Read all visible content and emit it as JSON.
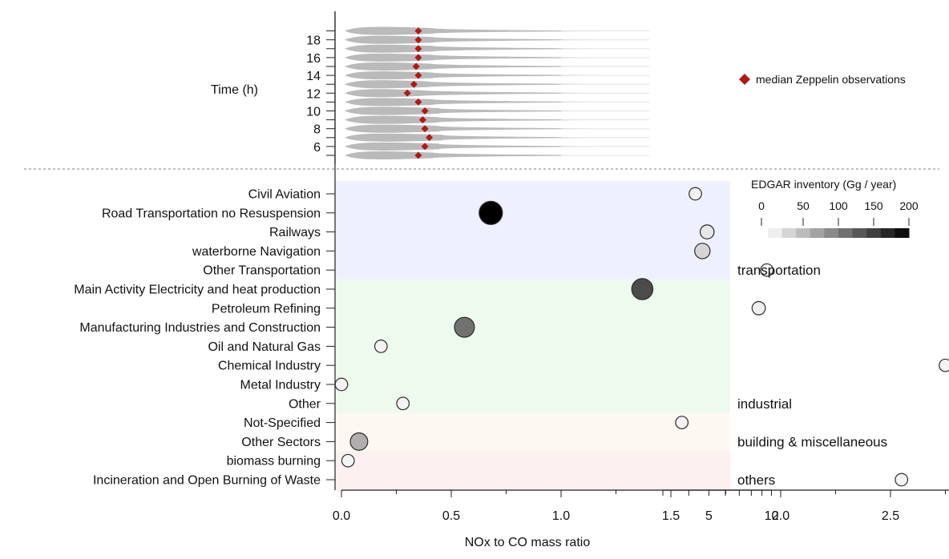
{
  "chart_data": {
    "type": "scatter",
    "xlabel": "NOx to CO mass ratio",
    "x_ticks_linear": [
      "0.0",
      "0.5",
      "1.0",
      "1.5",
      "2.0",
      "2.5"
    ],
    "x_ticks_log": [
      "5",
      "10"
    ],
    "x_scale": "linear 0-2.8, then log 3-10",
    "colorbar": {
      "title": "EDGAR inventory (Gg / year)",
      "ticks": [
        "0",
        "50",
        "100",
        "150",
        "200"
      ],
      "range": [
        0,
        200
      ],
      "colormap": "white to black"
    },
    "legend": {
      "label": "median Zeppelin observations",
      "color": "#b01818",
      "placement": "top-right"
    },
    "time_panel": {
      "ylabel": "Time (h)",
      "y_ticks": [
        "6",
        "8",
        "10",
        "12",
        "14",
        "16",
        "18"
      ],
      "hours": [
        5,
        6,
        7,
        8,
        9,
        10,
        11,
        12,
        13,
        14,
        15,
        16,
        17,
        18,
        19
      ],
      "median_ratio": [
        0.35,
        0.38,
        0.4,
        0.38,
        0.37,
        0.38,
        0.35,
        0.3,
        0.33,
        0.35,
        0.34,
        0.35,
        0.35,
        0.35,
        0.35
      ]
    },
    "groups": [
      {
        "label": "transportation",
        "color": "#eef1fd"
      },
      {
        "label": "industrial",
        "color": "#eefaee"
      },
      {
        "label": "building & miscellaneous",
        "color": "#fdf8f1"
      },
      {
        "label": "others",
        "color": "#fdf0f0"
      }
    ],
    "sectors": [
      {
        "label": "Civil Aviation",
        "group": 0,
        "ratio": 4.3,
        "emission": 5
      },
      {
        "label": "Road Transportation no Resuspension",
        "group": 0,
        "ratio": 0.68,
        "emission": 200
      },
      {
        "label": "Railways",
        "group": 0,
        "ratio": 4.9,
        "emission": 15
      },
      {
        "label": "waterborne Navigation",
        "group": 0,
        "ratio": 4.65,
        "emission": 30
      },
      {
        "label": "Other Transportation",
        "group": 0,
        "ratio": 9.5,
        "emission": 5
      },
      {
        "label": "Main Activity Electricity and heat production",
        "group": 1,
        "ratio": 1.37,
        "emission": 140
      },
      {
        "label": "Petroleum Refining",
        "group": 1,
        "ratio": 1.9,
        "emission": 10
      },
      {
        "label": "Manufacturing Industries and Construction",
        "group": 1,
        "ratio": 0.56,
        "emission": 110
      },
      {
        "label": "Oil and Natural Gas",
        "group": 1,
        "ratio": 0.18,
        "emission": 5
      },
      {
        "label": "Chemical Industry",
        "group": 1,
        "ratio": 2.75,
        "emission": 5
      },
      {
        "label": "Metal Industry",
        "group": 1,
        "ratio": 0.0,
        "emission": 5
      },
      {
        "label": "Other",
        "group": 1,
        "ratio": 0.28,
        "emission": 5
      },
      {
        "label": "Not-Specified",
        "group": 2,
        "ratio": 1.55,
        "emission": 5
      },
      {
        "label": "Other Sectors",
        "group": 2,
        "ratio": 0.08,
        "emission": 60
      },
      {
        "label": "biomass burning",
        "group": 3,
        "ratio": 0.03,
        "emission": 5
      },
      {
        "label": "Incineration and Open Burning of Waste",
        "group": 3,
        "ratio": 2.55,
        "emission": 5
      }
    ]
  }
}
